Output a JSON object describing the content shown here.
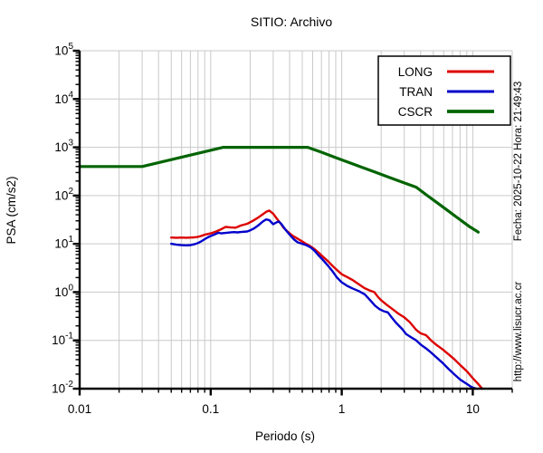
{
  "title": "SITIO: Archivo",
  "annotations": {
    "fecha_hora": "Fecha: 2025-10-22 Hora: 21:49:43",
    "website": "http://www.lisucr.ac.cr"
  },
  "colors": {
    "long": "#dd0000",
    "tran": "#0000cc",
    "cscr": "#006400",
    "grid": "#c9c9c9",
    "axis": "#000000",
    "background": "#ffffff"
  },
  "chart_data": {
    "type": "line",
    "title": "SITIO: Archivo",
    "xlabel": "Periodo (s)",
    "ylabel": "PSA (cm/s2)",
    "xscale": "log",
    "yscale": "log",
    "xlim": [
      0.01,
      20
    ],
    "ylim": [
      0.01,
      100000
    ],
    "xticks": [
      0.01,
      0.1,
      1,
      10
    ],
    "xtick_labels": [
      "0.01",
      "0.1",
      "1",
      "10"
    ],
    "ytick_exponents": [
      -2,
      -1,
      0,
      1,
      2,
      3,
      4,
      5
    ],
    "grid": true,
    "legend_position": "top-right",
    "series": [
      {
        "name": "LONG",
        "color": "#dd0000",
        "stroke_width": 2.4,
        "points": [
          [
            0.05,
            13.5
          ],
          [
            0.055,
            13.4
          ],
          [
            0.06,
            13.5
          ],
          [
            0.065,
            13.4
          ],
          [
            0.07,
            13.5
          ],
          [
            0.075,
            13.6
          ],
          [
            0.08,
            14.0
          ],
          [
            0.085,
            14.6
          ],
          [
            0.09,
            15.5
          ],
          [
            0.095,
            16.0
          ],
          [
            0.1,
            16.5
          ],
          [
            0.11,
            18.0
          ],
          [
            0.12,
            20.0
          ],
          [
            0.13,
            22.5
          ],
          [
            0.14,
            22.0
          ],
          [
            0.155,
            21.6
          ],
          [
            0.17,
            24.0
          ],
          [
            0.19,
            26.0
          ],
          [
            0.21,
            30.0
          ],
          [
            0.23,
            35.0
          ],
          [
            0.25,
            41.0
          ],
          [
            0.265,
            46.0
          ],
          [
            0.28,
            49.0
          ],
          [
            0.3,
            42.0
          ],
          [
            0.32,
            33.0
          ],
          [
            0.34,
            27.0
          ],
          [
            0.36,
            21.5
          ],
          [
            0.39,
            17.5
          ],
          [
            0.42,
            14.8
          ],
          [
            0.46,
            12.8
          ],
          [
            0.5,
            11.2
          ],
          [
            0.54,
            9.8
          ],
          [
            0.58,
            8.8
          ],
          [
            0.62,
            7.8
          ],
          [
            0.67,
            6.5
          ],
          [
            0.72,
            5.4
          ],
          [
            0.79,
            4.3
          ],
          [
            0.86,
            3.4
          ],
          [
            0.93,
            2.8
          ],
          [
            1.0,
            2.35
          ],
          [
            1.1,
            2.05
          ],
          [
            1.2,
            1.8
          ],
          [
            1.35,
            1.45
          ],
          [
            1.5,
            1.2
          ],
          [
            1.65,
            1.07
          ],
          [
            1.77,
            1.0
          ],
          [
            1.9,
            0.78
          ],
          [
            2.0,
            0.68
          ],
          [
            2.2,
            0.55
          ],
          [
            2.45,
            0.44
          ],
          [
            2.7,
            0.36
          ],
          [
            3.0,
            0.3
          ],
          [
            3.3,
            0.24
          ],
          [
            3.7,
            0.165
          ],
          [
            4.0,
            0.14
          ],
          [
            4.4,
            0.128
          ],
          [
            4.8,
            0.1
          ],
          [
            5.3,
            0.08
          ],
          [
            5.9,
            0.065
          ],
          [
            6.5,
            0.052
          ],
          [
            7.2,
            0.041
          ],
          [
            8.0,
            0.031
          ],
          [
            9.0,
            0.023
          ],
          [
            10.0,
            0.0165
          ],
          [
            11.0,
            0.0125
          ],
          [
            11.8,
            0.01
          ]
        ]
      },
      {
        "name": "TRAN",
        "color": "#0000cc",
        "stroke_width": 2.4,
        "points": [
          [
            0.05,
            10.0
          ],
          [
            0.055,
            9.6
          ],
          [
            0.06,
            9.4
          ],
          [
            0.065,
            9.3
          ],
          [
            0.07,
            9.4
          ],
          [
            0.075,
            9.8
          ],
          [
            0.08,
            10.4
          ],
          [
            0.085,
            11.3
          ],
          [
            0.09,
            12.5
          ],
          [
            0.095,
            13.6
          ],
          [
            0.1,
            14.5
          ],
          [
            0.105,
            15.3
          ],
          [
            0.11,
            16.2
          ],
          [
            0.115,
            17.0
          ],
          [
            0.12,
            16.5
          ],
          [
            0.13,
            16.8
          ],
          [
            0.14,
            17.2
          ],
          [
            0.15,
            17.5
          ],
          [
            0.16,
            17.3
          ],
          [
            0.17,
            17.6
          ],
          [
            0.19,
            18.0
          ],
          [
            0.2,
            19.0
          ],
          [
            0.215,
            21.0
          ],
          [
            0.23,
            24.0
          ],
          [
            0.25,
            29.0
          ],
          [
            0.265,
            32.0
          ],
          [
            0.28,
            31.0
          ],
          [
            0.3,
            25.5
          ],
          [
            0.315,
            27.5
          ],
          [
            0.33,
            29.0
          ],
          [
            0.345,
            26.0
          ],
          [
            0.37,
            20.0
          ],
          [
            0.4,
            15.5
          ],
          [
            0.43,
            12.5
          ],
          [
            0.46,
            10.8
          ],
          [
            0.5,
            10.0
          ],
          [
            0.54,
            9.3
          ],
          [
            0.58,
            8.4
          ],
          [
            0.62,
            7.2
          ],
          [
            0.66,
            5.9
          ],
          [
            0.71,
            4.8
          ],
          [
            0.78,
            3.6
          ],
          [
            0.85,
            2.7
          ],
          [
            0.92,
            2.0
          ],
          [
            1.0,
            1.6
          ],
          [
            1.1,
            1.35
          ],
          [
            1.2,
            1.2
          ],
          [
            1.35,
            1.05
          ],
          [
            1.5,
            0.9
          ],
          [
            1.65,
            0.68
          ],
          [
            1.8,
            0.52
          ],
          [
            1.95,
            0.44
          ],
          [
            2.1,
            0.4
          ],
          [
            2.25,
            0.38
          ],
          [
            2.4,
            0.3
          ],
          [
            2.6,
            0.23
          ],
          [
            2.9,
            0.17
          ],
          [
            3.1,
            0.135
          ],
          [
            3.4,
            0.115
          ],
          [
            3.7,
            0.1
          ],
          [
            4.0,
            0.082
          ],
          [
            4.4,
            0.068
          ],
          [
            4.8,
            0.056
          ],
          [
            5.3,
            0.044
          ],
          [
            5.9,
            0.034
          ],
          [
            6.5,
            0.026
          ],
          [
            7.2,
            0.02
          ],
          [
            8.0,
            0.0155
          ],
          [
            9.0,
            0.0125
          ],
          [
            9.8,
            0.0108
          ],
          [
            10.6,
            0.01
          ]
        ]
      },
      {
        "name": "CSCR",
        "color": "#006400",
        "stroke_width": 3.2,
        "points": [
          [
            0.01,
            400
          ],
          [
            0.03,
            400
          ],
          [
            0.125,
            1000
          ],
          [
            0.55,
            1000
          ],
          [
            0.7,
            790
          ],
          [
            0.9,
            610
          ],
          [
            1.1,
            500
          ],
          [
            1.4,
            393
          ],
          [
            1.8,
            306
          ],
          [
            2.3,
            239
          ],
          [
            3.0,
            183
          ],
          [
            3.7,
            149
          ],
          [
            4.5,
            100
          ],
          [
            5.5,
            67
          ],
          [
            6.5,
            48
          ],
          [
            7.5,
            36
          ],
          [
            8.5,
            28
          ],
          [
            9.5,
            22.5
          ],
          [
            10.5,
            19
          ],
          [
            11.0,
            17.5
          ]
        ]
      }
    ]
  },
  "legend": {
    "entries": [
      "LONG",
      "TRAN",
      "CSCR"
    ]
  }
}
